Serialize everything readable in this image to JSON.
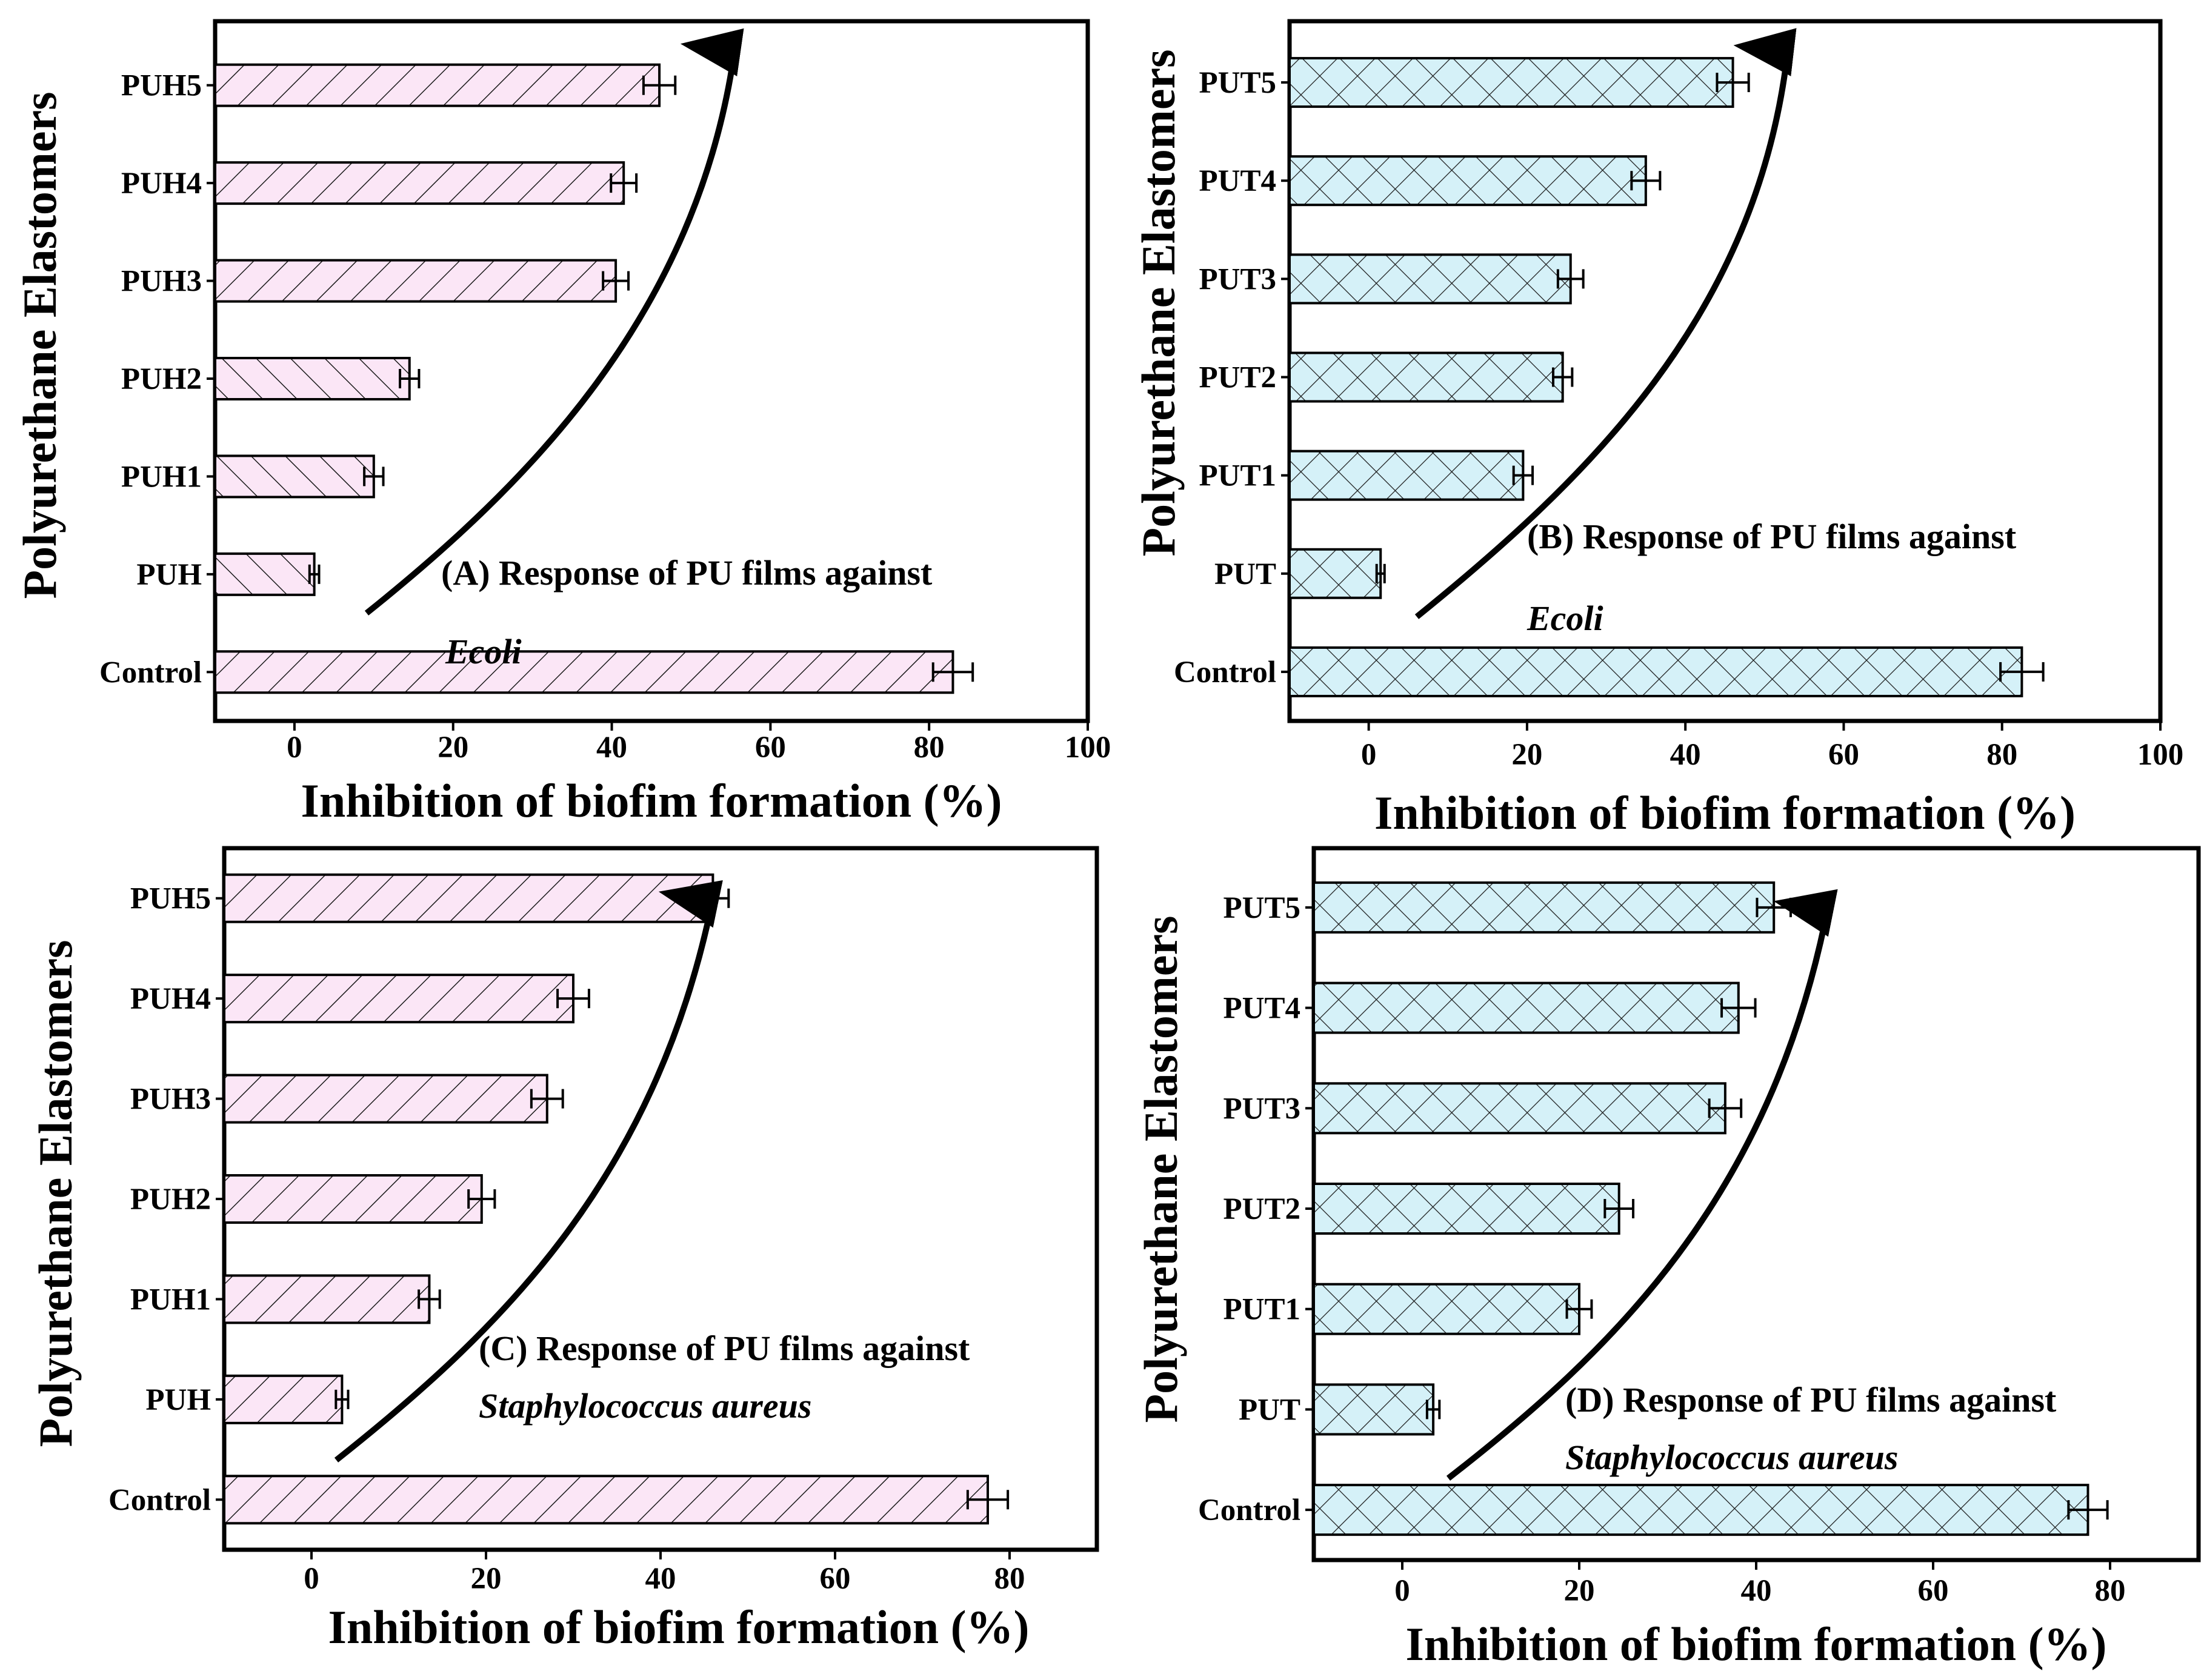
{
  "colors": {
    "pink_fill": "#fbe6f6",
    "cyan_fill": "#d5f1f8",
    "hatch": "#1a1a1a",
    "axis": "#000000"
  },
  "chart_data": [
    {
      "type": "bar",
      "orientation": "horizontal",
      "panel": "A",
      "fill": "pink",
      "hatch": "back-diag",
      "categories": [
        "Control",
        "PUH",
        "PUH1",
        "PUH2",
        "PUH3",
        "PUH4",
        "PUH5"
      ],
      "hatch_per_category": [
        "back",
        "fwd",
        "fwd",
        "fwd",
        "back",
        "back",
        "back"
      ],
      "values": [
        83,
        2.5,
        10,
        14.5,
        40.5,
        41.5,
        46
      ],
      "errors": [
        2.5,
        0.6,
        1.2,
        1.2,
        1.6,
        1.6,
        2.0
      ],
      "xlim": [
        -10,
        100
      ],
      "xticks": [
        0,
        20,
        40,
        60,
        80,
        100
      ],
      "xlabel": "Inhibition of biofim formation (%)",
      "ylabel": "Polyurethane Elastomers",
      "annotation": "(A) Response of PU films against",
      "annotation_italic": "Ecoli"
    },
    {
      "type": "bar",
      "orientation": "horizontal",
      "panel": "B",
      "fill": "cyan",
      "hatch": "cross",
      "categories": [
        "Control",
        "PUT",
        "PUT1",
        "PUT2",
        "PUT3",
        "PUT4",
        "PUT5"
      ],
      "values": [
        82.5,
        1.5,
        19.5,
        24.5,
        25.5,
        35,
        46
      ],
      "errors": [
        2.7,
        0.5,
        1.2,
        1.2,
        1.6,
        1.8,
        2.0
      ],
      "xlim": [
        -10,
        100
      ],
      "xticks": [
        0,
        20,
        40,
        60,
        80,
        100
      ],
      "xlabel": "Inhibition of biofim formation (%)",
      "ylabel": "Polyurethane Elastomers",
      "annotation": "(B) Response of PU films against",
      "annotation_italic": "Ecoli"
    },
    {
      "type": "bar",
      "orientation": "horizontal",
      "panel": "C",
      "fill": "pink",
      "hatch": "back-diag",
      "categories": [
        "Control",
        "PUH",
        "PUH1",
        "PUH2",
        "PUH3",
        "PUH4",
        "PUH5"
      ],
      "values": [
        77.5,
        3.5,
        13.5,
        19.5,
        27,
        30,
        46
      ],
      "errors": [
        2.3,
        0.7,
        1.2,
        1.5,
        1.8,
        1.8,
        1.8
      ],
      "xlim": [
        -10,
        90
      ],
      "xticks": [
        0,
        20,
        40,
        60,
        80
      ],
      "xlabel": "Inhibition of biofim formation (%)",
      "ylabel": "Polyurethane Elastomers",
      "annotation": "(C) Response of PU films against",
      "annotation_italic": "Staphylococcus aureus"
    },
    {
      "type": "bar",
      "orientation": "horizontal",
      "panel": "D",
      "fill": "cyan",
      "hatch": "cross",
      "categories": [
        "Control",
        "PUT",
        "PUT1",
        "PUT2",
        "PUT3",
        "PUT4",
        "PUT5"
      ],
      "values": [
        77.5,
        3.5,
        20,
        24.5,
        36.5,
        38,
        42
      ],
      "errors": [
        2.2,
        0.7,
        1.4,
        1.6,
        1.8,
        1.9,
        1.9
      ],
      "xlim": [
        -10,
        90
      ],
      "xticks": [
        0,
        20,
        40,
        60,
        80
      ],
      "xlabel": "Inhibition of biofim formation (%)",
      "ylabel": "Polyurethane Elastomers",
      "annotation": "(D) Response of PU films against",
      "annotation_italic": "Staphylococcus aureus"
    }
  ]
}
